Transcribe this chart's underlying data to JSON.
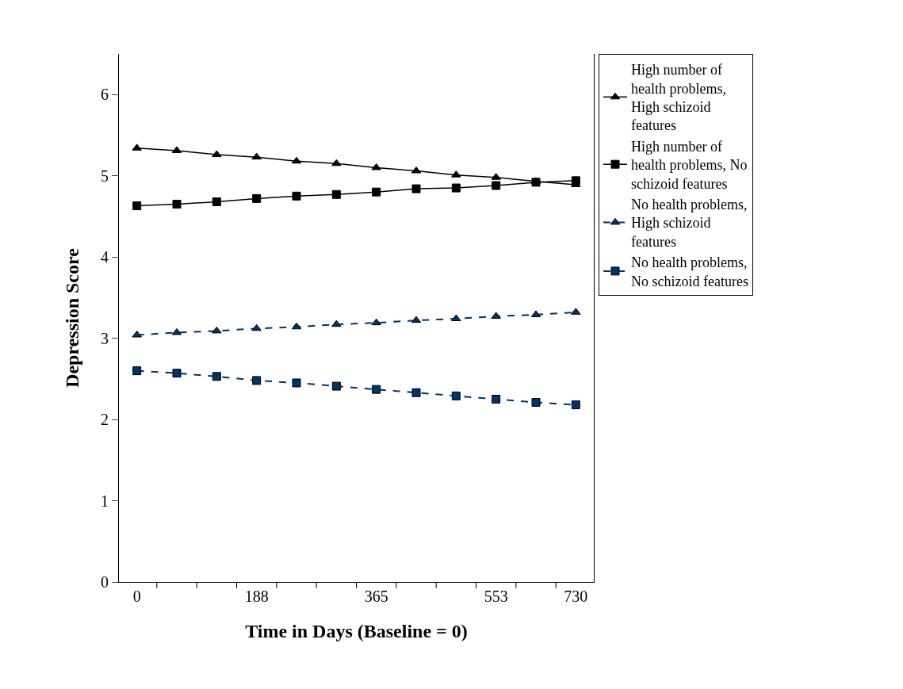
{
  "chart_data": {
    "type": "line",
    "xlabel": "Time in Days (Baseline = 0)",
    "ylabel": "Depression Score",
    "categories": [
      "0",
      null,
      null,
      "188",
      null,
      null,
      "365",
      null,
      null,
      "553",
      null,
      "730"
    ],
    "ylim": [
      0,
      6.5
    ],
    "yticks": [
      0,
      1,
      2,
      3,
      4,
      5,
      6
    ],
    "legend": "right",
    "series": [
      {
        "name": "High number of health problems, High schizoid features",
        "color": "#000000",
        "marker": "triangle",
        "line_style": "solid",
        "values": [
          5.34,
          5.31,
          5.26,
          5.23,
          5.18,
          5.15,
          5.1,
          5.06,
          5.01,
          4.98,
          4.93,
          4.89
        ]
      },
      {
        "name": "High number of health problems, No schizoid features",
        "color": "#000000",
        "marker": "square",
        "line_style": "solid",
        "values": [
          4.63,
          4.65,
          4.68,
          4.72,
          4.75,
          4.77,
          4.8,
          4.84,
          4.85,
          4.88,
          4.92,
          4.94
        ]
      },
      {
        "name": "No health problems, High schizoid features",
        "color": "#003366",
        "marker": "triangle",
        "line_style": "dashed",
        "values": [
          3.04,
          3.07,
          3.09,
          3.12,
          3.14,
          3.17,
          3.19,
          3.22,
          3.24,
          3.27,
          3.29,
          3.32
        ]
      },
      {
        "name": "No health problems, No schizoid features",
        "color": "#003366",
        "marker": "square",
        "line_style": "dashed",
        "values": [
          2.6,
          2.57,
          2.53,
          2.48,
          2.45,
          2.41,
          2.37,
          2.33,
          2.29,
          2.25,
          2.21,
          2.18
        ]
      }
    ]
  }
}
